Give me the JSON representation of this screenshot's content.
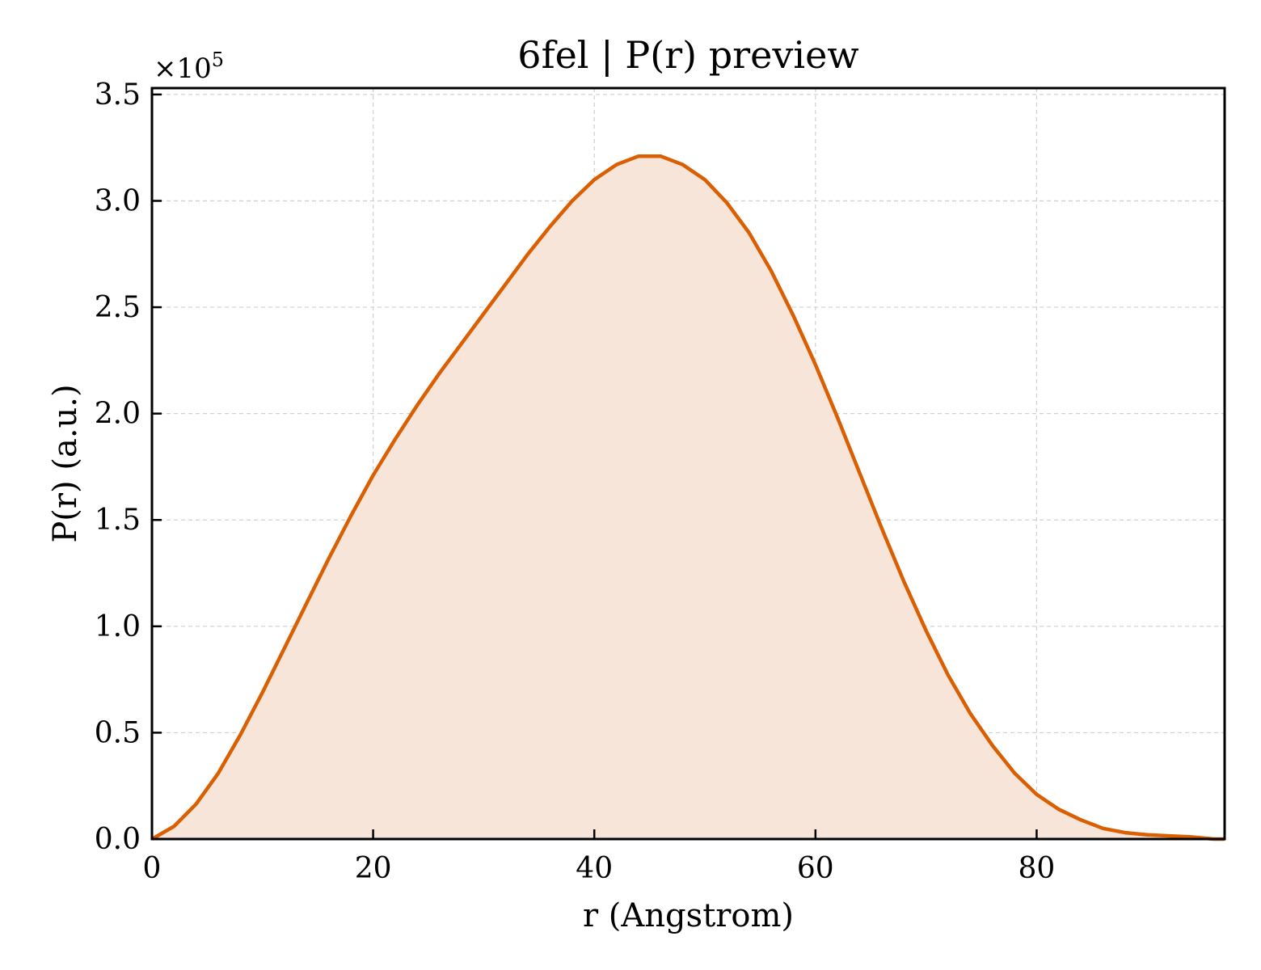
{
  "chart_data": {
    "type": "area",
    "title": "6fel | P(r) preview",
    "xlabel": "r (Angstrom)",
    "ylabel": "P(r) (a.u.)",
    "y_multiplier_label": "×10",
    "y_multiplier_exponent": "5",
    "xlim": [
      0,
      97
    ],
    "ylim": [
      0,
      3.53
    ],
    "y_scale_factor": 100000,
    "x_ticks": [
      0,
      20,
      40,
      60,
      80
    ],
    "x_tick_labels": [
      "0",
      "20",
      "40",
      "60",
      "80"
    ],
    "y_ticks": [
      0.0,
      0.5,
      1.0,
      1.5,
      2.0,
      2.5,
      3.0,
      3.5
    ],
    "y_tick_labels": [
      "0.0",
      "0.5",
      "1.0",
      "1.5",
      "2.0",
      "2.5",
      "3.0",
      "3.5"
    ],
    "grid": true,
    "grid_style": "dashed",
    "tick_direction": "in",
    "colors": {
      "line": "#d95f02",
      "fill": "#f7e5d9",
      "grid": "#d0d0d0",
      "axis": "#000000"
    },
    "series": [
      {
        "x": [
          0,
          2,
          4,
          6,
          8,
          10,
          12,
          14,
          16,
          18,
          20,
          22,
          24,
          26,
          28,
          30,
          32,
          34,
          36,
          38,
          40,
          42,
          44,
          46,
          48,
          50,
          52,
          54,
          56,
          58,
          60,
          62,
          64,
          66,
          68,
          70,
          72,
          74,
          76,
          78,
          80,
          82,
          84,
          86,
          88,
          90,
          92,
          94,
          96,
          97
        ],
        "y": [
          0.0,
          0.06,
          0.165,
          0.31,
          0.49,
          0.69,
          0.9,
          1.11,
          1.32,
          1.52,
          1.71,
          1.88,
          2.04,
          2.19,
          2.33,
          2.47,
          2.61,
          2.75,
          2.88,
          3.0,
          3.1,
          3.17,
          3.21,
          3.21,
          3.17,
          3.1,
          2.99,
          2.85,
          2.67,
          2.46,
          2.23,
          1.98,
          1.72,
          1.46,
          1.21,
          0.98,
          0.77,
          0.59,
          0.44,
          0.31,
          0.21,
          0.14,
          0.09,
          0.05,
          0.03,
          0.02,
          0.015,
          0.01,
          0.0,
          0.0
        ]
      }
    ]
  }
}
